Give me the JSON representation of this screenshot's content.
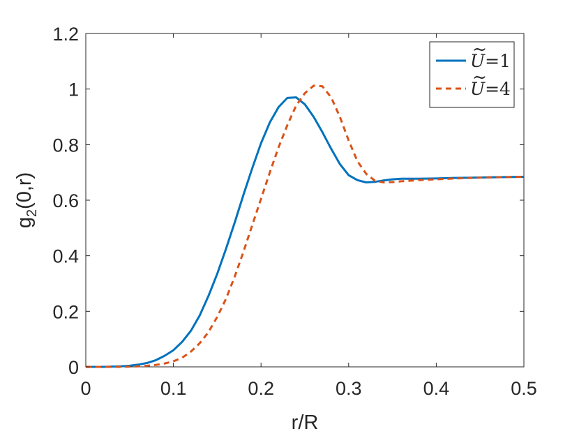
{
  "chart_data": {
    "type": "line",
    "title": "",
    "xlabel": "r/R",
    "ylabel_main": "g",
    "ylabel_sub": "2",
    "ylabel_rest": "(0,r)",
    "xlim": [
      0,
      0.5
    ],
    "ylim": [
      0,
      1.2
    ],
    "xticks": [
      0,
      0.1,
      0.2,
      0.3,
      0.4,
      0.5
    ],
    "xtick_labels": [
      "0",
      "0.1",
      "0.2",
      "0.3",
      "0.4",
      "0.5"
    ],
    "yticks": [
      0,
      0.2,
      0.4,
      0.6,
      0.8,
      1,
      1.2
    ],
    "ytick_labels": [
      "0",
      "0.2",
      "0.4",
      "0.6",
      "0.8",
      "1",
      "1.2"
    ],
    "grid": false,
    "legend_position": "top-right",
    "series": [
      {
        "name": "Ũ=1",
        "legend_symbol": "U",
        "legend_value": "=1",
        "color": "#0072BD",
        "style": "solid",
        "x": [
          0,
          0.01,
          0.02,
          0.03,
          0.04,
          0.05,
          0.06,
          0.07,
          0.08,
          0.09,
          0.1,
          0.11,
          0.12,
          0.13,
          0.14,
          0.15,
          0.16,
          0.17,
          0.18,
          0.19,
          0.2,
          0.21,
          0.22,
          0.23,
          0.24,
          0.25,
          0.26,
          0.27,
          0.28,
          0.29,
          0.3,
          0.31,
          0.32,
          0.33,
          0.34,
          0.35,
          0.36,
          0.38,
          0.4,
          0.42,
          0.44,
          0.46,
          0.48,
          0.5
        ],
        "y": [
          0.0,
          0.0,
          0.0,
          0.001,
          0.002,
          0.004,
          0.008,
          0.014,
          0.024,
          0.04,
          0.06,
          0.09,
          0.13,
          0.185,
          0.255,
          0.335,
          0.425,
          0.52,
          0.62,
          0.715,
          0.805,
          0.88,
          0.935,
          0.968,
          0.97,
          0.945,
          0.9,
          0.845,
          0.785,
          0.73,
          0.69,
          0.672,
          0.664,
          0.666,
          0.671,
          0.675,
          0.677,
          0.677,
          0.678,
          0.68,
          0.681,
          0.682,
          0.683,
          0.684
        ]
      },
      {
        "name": "Ũ=4",
        "legend_symbol": "U",
        "legend_value": "=4",
        "color": "#D95319",
        "style": "dashed",
        "x": [
          0,
          0.01,
          0.02,
          0.03,
          0.04,
          0.05,
          0.06,
          0.07,
          0.08,
          0.09,
          0.1,
          0.11,
          0.12,
          0.13,
          0.14,
          0.15,
          0.16,
          0.17,
          0.18,
          0.19,
          0.2,
          0.21,
          0.22,
          0.23,
          0.24,
          0.25,
          0.26,
          0.27,
          0.28,
          0.29,
          0.3,
          0.31,
          0.32,
          0.33,
          0.34,
          0.35,
          0.36,
          0.38,
          0.4,
          0.42,
          0.44,
          0.46,
          0.48,
          0.5
        ],
        "y": [
          0.0,
          0.0,
          0.0,
          0.0,
          0.0,
          0.001,
          0.002,
          0.004,
          0.007,
          0.012,
          0.02,
          0.033,
          0.055,
          0.085,
          0.125,
          0.18,
          0.245,
          0.325,
          0.415,
          0.51,
          0.605,
          0.7,
          0.79,
          0.87,
          0.94,
          0.985,
          1.012,
          1.01,
          0.97,
          0.9,
          0.815,
          0.74,
          0.695,
          0.67,
          0.664,
          0.665,
          0.668,
          0.672,
          0.675,
          0.678,
          0.68,
          0.682,
          0.683,
          0.684
        ]
      }
    ]
  }
}
